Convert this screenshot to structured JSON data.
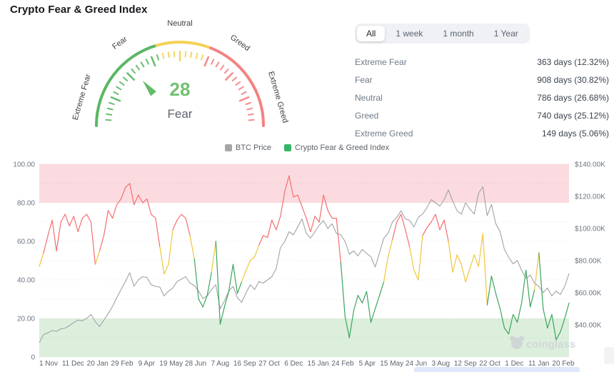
{
  "page_title": "Crypto Fear & Greed Index",
  "gauge": {
    "value": 28,
    "status": "Fear",
    "value_color": "#72c072",
    "status_color": "#5c646e",
    "needle_color": "#63bb66",
    "axis_labels": [
      {
        "text": "Extreme Fear",
        "pos": 9
      },
      {
        "text": "Fear",
        "pos": 30
      },
      {
        "text": "Neutral",
        "pos": 50
      },
      {
        "text": "Greed",
        "pos": 70
      },
      {
        "text": "Extreme Greed",
        "pos": 91
      }
    ],
    "segments": [
      {
        "from": 0,
        "to": 41,
        "color": "#5ab763"
      },
      {
        "from": 41,
        "to": 62,
        "color": "#f6d254"
      },
      {
        "from": 62,
        "to": 100,
        "color": "#f58181"
      }
    ]
  },
  "stats": {
    "tabs": [
      "All",
      "1 week",
      "1 month",
      "1 Year"
    ],
    "active_tab": "All",
    "rows": [
      {
        "label": "Extreme Fear",
        "value": "363 days (12.32%)"
      },
      {
        "label": "Fear",
        "value": "908 days (30.82%)"
      },
      {
        "label": "Neutral",
        "value": "786 days (26.68%)"
      },
      {
        "label": "Greed",
        "value": "740 days (25.12%)"
      },
      {
        "label": "Extreme Greed",
        "value": "149 days (5.06%)"
      }
    ]
  },
  "chart_data": {
    "type": "line",
    "legend": [
      {
        "name": "BTC Price",
        "color": "#a6a6a6"
      },
      {
        "name": "Crypto Fear & Greed Index",
        "color": "#36b566"
      }
    ],
    "left_axis": {
      "ticks": [
        "100.00",
        "80.00",
        "60.00",
        "40.00",
        "20.00",
        "0"
      ],
      "min": 0,
      "max": 100
    },
    "right_axis": {
      "ticks": [
        "$140.00K",
        "$120.00K",
        "$100.00K",
        "$80.00K",
        "$60.00K",
        "$40.00K"
      ],
      "min_k": 20,
      "max_k": 140
    },
    "bands": [
      {
        "from": 80,
        "to": 100,
        "color": "#fbdbdf"
      },
      {
        "from": 0,
        "to": 20,
        "color": "#dcefdc"
      }
    ],
    "x_tick_labels": [
      "1 Nov",
      "11 Dec",
      "20 Jan",
      "29 Feb",
      "9 Apr",
      "19 May",
      "28 Jun",
      "7 Aug",
      "16 Sep",
      "27 Oct",
      "6 Dec",
      "15 Jan",
      "24 Feb",
      "5 Apr",
      "15 May",
      "24 Jun",
      "3 Aug",
      "12 Sep",
      "22 Oct",
      "1 Dec",
      "11 Jan",
      "20 Feb"
    ],
    "grid": true,
    "legend_position": "top",
    "watermark": {
      "text": "coinglass",
      "icon": "bear-icon"
    },
    "series": [
      {
        "name": "BTC Price",
        "axis": "right",
        "color": "#9fa3a9",
        "values_k": [
          29,
          34,
          35,
          36.5,
          36,
          37.5,
          38,
          39.5,
          41.5,
          43,
          42.5,
          44,
          46.5,
          42,
          39,
          43,
          47,
          51.5,
          57,
          62,
          67,
          72.5,
          64,
          68,
          70,
          69.5,
          65,
          64,
          63.5,
          58,
          61,
          63,
          67,
          68.5,
          70,
          66,
          64.5,
          61,
          56.5,
          58,
          62,
          65,
          50,
          55,
          61,
          64,
          57,
          54,
          60,
          65,
          62,
          67,
          66,
          68,
          70,
          75,
          88,
          92,
          98,
          96,
          101,
          106,
          97,
          94,
          98,
          102,
          105,
          100,
          103,
          97,
          96,
          92,
          84,
          86,
          83,
          87,
          84.5,
          82.5,
          76,
          85,
          94,
          97,
          104,
          107,
          111,
          106,
          105,
          101,
          107,
          109,
          113,
          118,
          116,
          114,
          118,
          124,
          117,
          111,
          109,
          116,
          112,
          109,
          122,
          126,
          108,
          115,
          103,
          98,
          87,
          82,
          78,
          80,
          74,
          69,
          71,
          66,
          64,
          60,
          63,
          58,
          61,
          59,
          64,
          72
        ]
      },
      {
        "name": "Crypto Fear & Greed Index",
        "axis": "left",
        "color_rules": [
          {
            "lt": 42,
            "color": "#3ba55d"
          },
          {
            "lt": 58,
            "color": "#f0c63c"
          },
          {
            "lt": 101,
            "color": "#f56e6e"
          }
        ],
        "values": [
          47,
          54,
          63,
          71,
          55,
          70,
          74,
          68,
          73,
          65,
          72,
          74,
          70,
          48,
          55,
          63,
          76,
          72,
          79,
          82,
          88,
          90,
          79,
          84,
          80,
          82,
          74,
          72,
          57,
          43,
          48,
          66,
          71,
          74,
          72,
          63,
          51,
          30,
          26,
          32,
          44,
          60,
          17,
          26,
          34,
          48,
          33,
          39,
          45,
          50,
          52,
          58,
          63,
          62,
          71,
          66,
          73,
          86,
          94,
          83,
          84,
          78,
          72,
          65,
          73,
          70,
          84,
          76,
          72,
          72,
          49,
          21,
          10,
          24,
          32,
          28,
          34,
          18,
          25,
          32,
          39,
          52,
          61,
          70,
          74,
          66,
          57,
          45,
          40,
          63,
          67,
          70,
          74,
          66,
          71,
          60,
          44,
          53,
          48,
          39,
          46,
          53,
          47,
          64,
          27,
          42,
          33,
          25,
          15,
          12,
          22,
          18,
          28,
          45,
          26,
          35,
          54,
          25,
          15,
          22,
          9,
          13,
          20,
          28
        ]
      }
    ]
  }
}
